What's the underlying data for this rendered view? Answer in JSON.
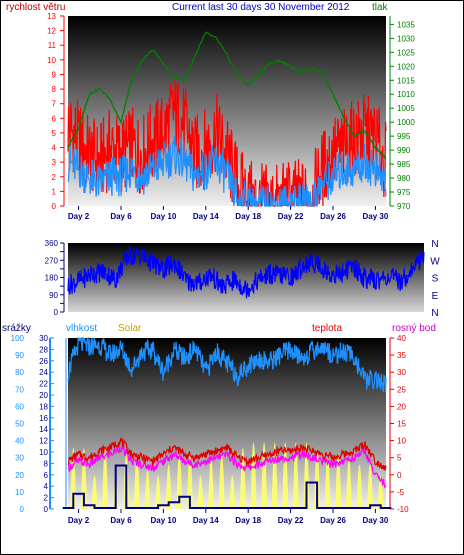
{
  "header": {
    "title": "Current last 30 days 30 November 2012",
    "left_label": "rychlost větru",
    "right_label": "tlak"
  },
  "colors": {
    "wind": "#ff0000",
    "gust": "#1e90ff",
    "pressure": "#008000",
    "direction": "#0000ff",
    "rain": "#000080",
    "humidity": "#1e90ff",
    "solar": "#ffff66",
    "temperature": "#e00000",
    "dewpoint": "#ff00ff",
    "title": "#0000c0"
  },
  "chart_data": [
    {
      "type": "line",
      "title": "Current last 30 days 30 November 2012",
      "xlabel": "",
      "x_ticks": [
        "Day 2",
        "Day 6",
        "Day 10",
        "Day 14",
        "Day 18",
        "Day 22",
        "Day 26",
        "Day 30"
      ],
      "x_tick_days": [
        2,
        6,
        10,
        14,
        18,
        22,
        26,
        30
      ],
      "xlim": [
        1,
        31
      ],
      "left_axis": {
        "label": "rychlost větru",
        "ylim": [
          0,
          13
        ],
        "ticks": [
          0,
          1,
          2,
          3,
          4,
          5,
          6,
          7,
          8,
          9,
          10,
          11,
          12,
          13
        ]
      },
      "right_axis": {
        "label": "tlak",
        "ylim": [
          970,
          1038
        ],
        "ticks": [
          970,
          975,
          980,
          985,
          990,
          995,
          1000,
          1005,
          1010,
          1015,
          1020,
          1025,
          1030,
          1035
        ]
      },
      "grid": false,
      "series": [
        {
          "axis": "right",
          "x": [
            1,
            2,
            3,
            4,
            5,
            6,
            7,
            8,
            9,
            10,
            11,
            12,
            13,
            14,
            15,
            16,
            17,
            18,
            19,
            20,
            21,
            22,
            23,
            24,
            25,
            26,
            27,
            28,
            29,
            30,
            31
          ],
          "values": [
            991,
            998,
            1010,
            1012,
            1008,
            1000,
            1015,
            1022,
            1026,
            1021,
            1016,
            1015,
            1024,
            1032,
            1030,
            1024,
            1017,
            1013,
            1017,
            1021,
            1022,
            1020,
            1018,
            1019,
            1018,
            1010,
            1002,
            995,
            997,
            991,
            987
          ]
        },
        {
          "axis": "left",
          "x": [
            1,
            2,
            3,
            4,
            5,
            6,
            7,
            8,
            9,
            10,
            11,
            12,
            13,
            14,
            15,
            16,
            17,
            18,
            19,
            20,
            21,
            22,
            23,
            24,
            25,
            26,
            27,
            28,
            29,
            30,
            31
          ],
          "values": [
            5.5,
            4.5,
            3.5,
            3.0,
            4.0,
            3.5,
            4.0,
            3.5,
            4.5,
            5.0,
            6.5,
            5.5,
            3.5,
            4.0,
            5.0,
            3.5,
            1.5,
            0.5,
            0.2,
            0.2,
            0.2,
            0.5,
            0.5,
            0.5,
            2.5,
            3.5,
            4.0,
            4.5,
            5.0,
            4.5,
            3.0
          ]
        },
        {
          "axis": "left",
          "x": [
            1,
            2,
            3,
            4,
            5,
            6,
            7,
            8,
            9,
            10,
            11,
            12,
            13,
            14,
            15,
            16,
            17,
            18,
            19,
            20,
            21,
            22,
            23,
            24,
            25,
            26,
            27,
            28,
            29,
            30,
            31
          ],
          "values": [
            3.0,
            2.5,
            2.0,
            1.5,
            2.0,
            2.0,
            2.5,
            2.0,
            2.5,
            3.0,
            3.5,
            3.0,
            2.0,
            2.5,
            3.0,
            2.0,
            0.5,
            0.2,
            0.1,
            0.1,
            0.1,
            0.2,
            0.2,
            0.3,
            1.5,
            2.0,
            2.5,
            2.5,
            3.0,
            2.5,
            1.5
          ]
        }
      ]
    },
    {
      "type": "line",
      "xlim": [
        1,
        31
      ],
      "left_axis": {
        "ylim": [
          0,
          360
        ],
        "ticks": [
          0,
          45,
          90,
          135,
          180,
          225,
          270,
          315,
          360
        ]
      },
      "right_axis_labels": [
        "N",
        "W",
        "S",
        "E",
        "N"
      ],
      "series": [
        {
          "x": [
            1,
            2,
            3,
            4,
            5,
            6,
            7,
            8,
            9,
            10,
            11,
            12,
            13,
            14,
            15,
            16,
            17,
            18,
            19,
            20,
            21,
            22,
            23,
            24,
            25,
            26,
            27,
            28,
            29,
            30,
            31
          ],
          "values": [
            140,
            165,
            200,
            210,
            170,
            290,
            300,
            260,
            220,
            255,
            160,
            150,
            195,
            130,
            165,
            120,
            165,
            200,
            190,
            185,
            255,
            255,
            195,
            200,
            240,
            175,
            165,
            185,
            160,
            220,
            300
          ]
        }
      ]
    },
    {
      "type": "line",
      "x_ticks": [
        "Day 2",
        "Day 6",
        "Day 10",
        "Day 14",
        "Day 18",
        "Day 22",
        "Day 26",
        "Day 30"
      ],
      "x_tick_days": [
        2,
        6,
        10,
        14,
        18,
        22,
        26,
        30
      ],
      "xlim": [
        1,
        31
      ],
      "axes": [
        {
          "label": "srážky",
          "ylim": [
            0,
            30
          ],
          "ticks": [
            0,
            2,
            4,
            6,
            8,
            10,
            12,
            14,
            16,
            18,
            20,
            22,
            24,
            26,
            28,
            30
          ]
        },
        {
          "label": "vlhkost",
          "ylim": [
            0,
            100
          ],
          "ticks": [
            0,
            10,
            20,
            30,
            40,
            50,
            60,
            70,
            80,
            90,
            100
          ]
        },
        {
          "label": "Solar"
        },
        {
          "label": "teplota",
          "ylim": [
            -10,
            40
          ],
          "ticks": [
            -10,
            -5,
            0,
            5,
            10,
            15,
            20,
            25,
            30,
            35,
            40
          ]
        },
        {
          "label": "rosný bod"
        }
      ],
      "series": [
        {
          "name": "vlhkost",
          "axis": "vlhkost",
          "x": [
            1,
            2,
            3,
            4,
            5,
            6,
            7,
            8,
            9,
            10,
            11,
            12,
            13,
            14,
            15,
            16,
            17,
            18,
            19,
            20,
            21,
            22,
            23,
            24,
            25,
            26,
            27,
            28,
            29,
            30,
            31
          ],
          "values": [
            80,
            97,
            95,
            96,
            90,
            94,
            82,
            92,
            93,
            80,
            93,
            88,
            94,
            80,
            92,
            85,
            78,
            84,
            88,
            86,
            90,
            93,
            88,
            92,
            95,
            90,
            92,
            89,
            75,
            76,
            72
          ]
        },
        {
          "name": "teplota",
          "axis": "teplota",
          "x": [
            1,
            2,
            3,
            4,
            5,
            6,
            7,
            8,
            9,
            10,
            11,
            12,
            13,
            14,
            15,
            16,
            17,
            18,
            19,
            20,
            21,
            22,
            23,
            24,
            25,
            26,
            27,
            28,
            29,
            30,
            31
          ],
          "values": [
            4,
            6,
            5,
            7,
            8,
            10,
            6,
            5,
            4,
            6,
            8,
            6,
            5,
            6,
            7,
            8,
            5,
            4,
            5,
            6,
            7,
            7,
            8,
            7,
            6,
            5,
            6,
            7,
            9,
            4,
            2
          ]
        },
        {
          "name": "rosný bod",
          "axis": "teplota",
          "x": [
            1,
            2,
            3,
            4,
            5,
            6,
            7,
            8,
            9,
            10,
            11,
            12,
            13,
            14,
            15,
            16,
            17,
            18,
            19,
            20,
            21,
            22,
            23,
            24,
            25,
            26,
            27,
            28,
            29,
            30,
            31
          ],
          "values": [
            2,
            4,
            3,
            5,
            6,
            8,
            4,
            3,
            2,
            4,
            6,
            4,
            3,
            4,
            5,
            6,
            3,
            2,
            3,
            4,
            5,
            5,
            6,
            5,
            4,
            3,
            4,
            5,
            7,
            0,
            -3
          ]
        },
        {
          "name": "srážky",
          "axis": "srážky",
          "x": [
            1,
            2,
            3,
            4,
            5,
            6,
            7,
            8,
            9,
            10,
            11,
            12,
            13,
            14,
            15,
            16,
            17,
            18,
            19,
            20,
            21,
            22,
            23,
            24,
            25,
            26,
            27,
            28,
            29,
            30,
            31
          ],
          "values": [
            0,
            2.5,
            0.5,
            0,
            0,
            7.5,
            0,
            0,
            0,
            0.5,
            1,
            2,
            0,
            0,
            0,
            0,
            0,
            0,
            0,
            0,
            0,
            0,
            0,
            4.5,
            0,
            0,
            0,
            0,
            0,
            0.5,
            0
          ]
        },
        {
          "name": "Solar",
          "axis": "Solar",
          "x": [
            1.5,
            2.5,
            3.5,
            4.5,
            5.5,
            6.5,
            7.5,
            8.5,
            9.5,
            10.5,
            11.5,
            12.5,
            13.5,
            14.5,
            15.5,
            16.5,
            17.5,
            18.5,
            19.5,
            20.5,
            21.5,
            22.5,
            23.5,
            24.5,
            25.5,
            26.5,
            27.5,
            28.5,
            29.5,
            30.5
          ],
          "values": [
            0.55,
            0.55,
            0.3,
            0.55,
            0.25,
            0.5,
            0.5,
            0.35,
            0.3,
            0.4,
            0.5,
            0.5,
            0.3,
            0.45,
            0.5,
            0.3,
            0.55,
            0.6,
            0.6,
            0.6,
            0.6,
            0.6,
            0.6,
            0.55,
            0.5,
            0.5,
            0.45,
            0.4,
            0.4,
            0.3
          ]
        }
      ]
    }
  ]
}
